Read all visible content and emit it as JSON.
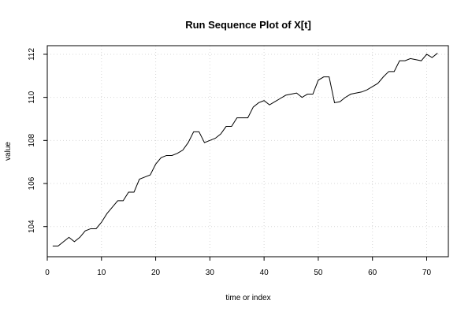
{
  "chart_data": {
    "type": "line",
    "title": "Run Sequence Plot of X[t]",
    "xlabel": "time or index",
    "ylabel": "value",
    "xlim": [
      0,
      74
    ],
    "ylim": [
      102.6,
      112.4
    ],
    "xticks": [
      0,
      10,
      20,
      30,
      40,
      50,
      60,
      70
    ],
    "yticks": [
      104,
      106,
      108,
      110,
      112
    ],
    "xtick_labels": [
      "0",
      "10",
      "20",
      "30",
      "40",
      "50",
      "60",
      "70"
    ],
    "ytick_labels": [
      "104",
      "106",
      "108",
      "110",
      "112"
    ],
    "grid": true,
    "series": [
      {
        "x": [
          1,
          2,
          3,
          4,
          5,
          6,
          7,
          8,
          9,
          10,
          11,
          12,
          13,
          14,
          15,
          16,
          17,
          18,
          19,
          20,
          21,
          22,
          23,
          24,
          25,
          26,
          27,
          28,
          29,
          30,
          31,
          32,
          33,
          34,
          35,
          36,
          37,
          38,
          39,
          40,
          41,
          42,
          43,
          44,
          45,
          46,
          47,
          48,
          49,
          50,
          51,
          52,
          53,
          54,
          55,
          56,
          57,
          58,
          59,
          60,
          61,
          62,
          63,
          64,
          65,
          66,
          67,
          68,
          69,
          70,
          71,
          72
        ],
        "values": [
          103.1,
          103.1,
          103.3,
          103.5,
          103.3,
          103.5,
          103.8,
          103.9,
          103.9,
          104.2,
          104.6,
          104.9,
          105.2,
          105.2,
          105.6,
          105.6,
          106.2,
          106.3,
          106.4,
          106.9,
          107.2,
          107.3,
          107.3,
          107.4,
          107.55,
          107.9,
          108.4,
          108.4,
          107.9,
          108.0,
          108.1,
          108.3,
          108.65,
          108.65,
          109.05,
          109.05,
          109.05,
          109.55,
          109.75,
          109.85,
          109.65,
          109.8,
          109.95,
          110.1,
          110.15,
          110.2,
          110.0,
          110.15,
          110.15,
          110.8,
          110.95,
          110.95,
          109.75,
          109.8,
          110.0,
          110.15,
          110.2,
          110.25,
          110.35,
          110.5,
          110.65,
          110.95,
          111.2,
          111.2,
          111.7,
          111.7,
          111.8,
          111.75,
          111.7,
          112.0,
          111.85,
          112.05
        ]
      }
    ]
  }
}
